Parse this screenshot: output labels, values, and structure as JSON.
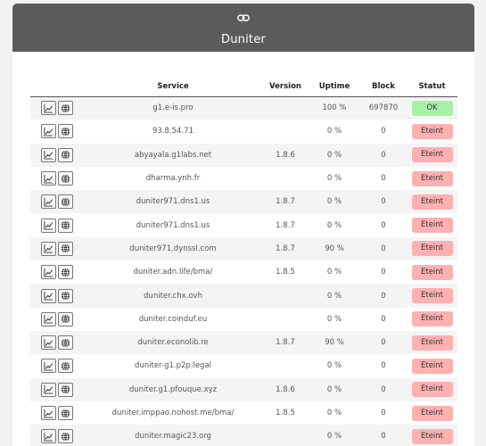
{
  "app": {
    "title": "Duniter"
  },
  "table": {
    "headers": {
      "service": "Service",
      "version": "Version",
      "uptime": "Uptime",
      "block": "Block",
      "statut": "Statut"
    },
    "rows": [
      {
        "service": "g1.e-is.pro",
        "version": "",
        "uptime": "100 %",
        "block": "697870",
        "status": "OK",
        "status_kind": "ok"
      },
      {
        "service": "93.8.54.71",
        "version": "",
        "uptime": "0 %",
        "block": "0",
        "status": "Eteint",
        "status_kind": "off"
      },
      {
        "service": "abyayala.g1labs.net",
        "version": "1.8.6",
        "uptime": "0 %",
        "block": "0",
        "status": "Eteint",
        "status_kind": "off"
      },
      {
        "service": "dharma.ynh.fr",
        "version": "",
        "uptime": "0 %",
        "block": "0",
        "status": "Eteint",
        "status_kind": "off"
      },
      {
        "service": "duniter971.dns1.us",
        "version": "1.8.7",
        "uptime": "0 %",
        "block": "0",
        "status": "Eteint",
        "status_kind": "off"
      },
      {
        "service": "duniter971.dns1.us",
        "version": "1.8.7",
        "uptime": "0 %",
        "block": "0",
        "status": "Eteint",
        "status_kind": "off"
      },
      {
        "service": "duniter971.dynssl.com",
        "version": "1.8.7",
        "uptime": "90 %",
        "block": "0",
        "status": "Eteint",
        "status_kind": "off"
      },
      {
        "service": "duniter.adn.life/bma/",
        "version": "1.8.5",
        "uptime": "0 %",
        "block": "0",
        "status": "Eteint",
        "status_kind": "off"
      },
      {
        "service": "duniter.chx.ovh",
        "version": "",
        "uptime": "0 %",
        "block": "0",
        "status": "Eteint",
        "status_kind": "off"
      },
      {
        "service": "duniter.coinduf.eu",
        "version": "",
        "uptime": "0 %",
        "block": "0",
        "status": "Eteint",
        "status_kind": "off"
      },
      {
        "service": "duniter.econolib.re",
        "version": "1.8.7",
        "uptime": "90 %",
        "block": "0",
        "status": "Eteint",
        "status_kind": "off"
      },
      {
        "service": "duniter-g1.p2p.legal",
        "version": "",
        "uptime": "0 %",
        "block": "0",
        "status": "Eteint",
        "status_kind": "off"
      },
      {
        "service": "duniter.g1.pfouque.xyz",
        "version": "1.8.6",
        "uptime": "0 %",
        "block": "0",
        "status": "Eteint",
        "status_kind": "off"
      },
      {
        "service": "duniter.imppao.nohost.me/bma/",
        "version": "1.8.5",
        "uptime": "0 %",
        "block": "0",
        "status": "Eteint",
        "status_kind": "off"
      },
      {
        "service": "duniter.magic23.org",
        "version": "",
        "uptime": "0 %",
        "block": "0",
        "status": "Eteint",
        "status_kind": "off"
      }
    ]
  },
  "icons": {
    "header": "link-icon",
    "chart": "chart-line-icon",
    "globe": "globe-icon"
  }
}
